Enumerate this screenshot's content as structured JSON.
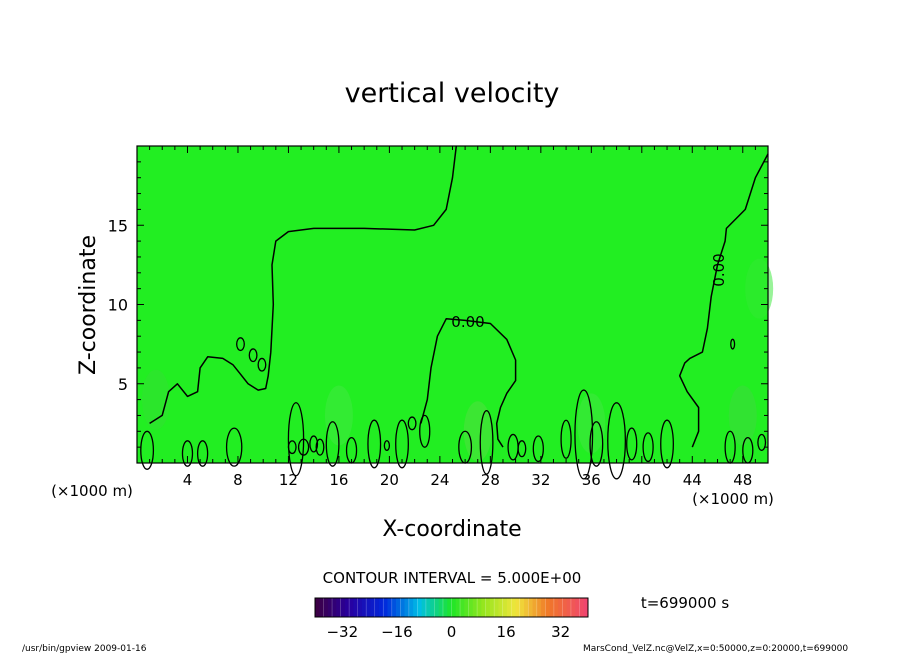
{
  "chart_data": {
    "type": "contour",
    "title": "vertical velocity",
    "xlabel": "X-coordinate",
    "ylabel": "Z-coordinate",
    "x_unit": "(×1000 m)",
    "x_unit_right": "(×1000 m)",
    "xlim": [
      0,
      50
    ],
    "ylim": [
      0,
      20
    ],
    "xticks": [
      4,
      8,
      12,
      16,
      20,
      24,
      28,
      32,
      36,
      40,
      44,
      48
    ],
    "yticks": [
      5,
      10,
      15
    ],
    "contour_labels": [
      "0.00",
      "0.00"
    ],
    "contour_interval_text": "CONTOUR INTERVAL = 5.000E+00",
    "time_text": "t=699000 s",
    "colorbar": {
      "ticks": [
        -32,
        -16,
        0,
        16,
        32
      ],
      "range": [
        -40,
        40
      ]
    },
    "contours_zero": [
      {
        "name": "main-zero-contour",
        "points": [
          [
            1,
            2.5
          ],
          [
            2,
            3
          ],
          [
            2.5,
            4.5
          ],
          [
            3.2,
            5
          ],
          [
            4,
            4.2
          ],
          [
            4.8,
            4.5
          ],
          [
            5,
            6
          ],
          [
            5.6,
            6.7
          ],
          [
            6.8,
            6.6
          ],
          [
            7.6,
            6.2
          ],
          [
            8.2,
            5.6
          ],
          [
            8.8,
            5
          ],
          [
            9.6,
            4.6
          ],
          [
            10.2,
            4.7
          ],
          [
            10.4,
            5.5
          ],
          [
            10.6,
            7
          ],
          [
            10.8,
            10
          ],
          [
            10.7,
            12.5
          ],
          [
            11,
            14
          ],
          [
            12,
            14.6
          ],
          [
            14,
            14.8
          ],
          [
            18,
            14.8
          ],
          [
            22,
            14.7
          ],
          [
            23.5,
            15
          ],
          [
            24.5,
            16
          ],
          [
            25,
            18
          ],
          [
            25.3,
            20
          ]
        ]
      },
      {
        "name": "middle-zero-contour",
        "points": [
          [
            22.5,
            2.5
          ],
          [
            23,
            4
          ],
          [
            23.3,
            6
          ],
          [
            23.8,
            8
          ],
          [
            24.5,
            9.1
          ],
          [
            26,
            9
          ],
          [
            28,
            8.8
          ],
          [
            29.3,
            7.8
          ],
          [
            30,
            6.5
          ],
          [
            30,
            5.2
          ],
          [
            29.3,
            4.4
          ],
          [
            28.8,
            3.5
          ],
          [
            28.5,
            2.5
          ],
          [
            28.6,
            1.5
          ],
          [
            29,
            1
          ]
        ]
      },
      {
        "name": "right-zero-contour",
        "points": [
          [
            50,
            19.5
          ],
          [
            49,
            18
          ],
          [
            48.2,
            16
          ],
          [
            46.7,
            14.8
          ],
          [
            46.6,
            14
          ],
          [
            46,
            12.5
          ],
          [
            45.5,
            10.5
          ],
          [
            45.2,
            8.5
          ],
          [
            44.8,
            7
          ],
          [
            43.8,
            6.6
          ],
          [
            43.4,
            6.3
          ],
          [
            43,
            5.5
          ],
          [
            43.6,
            4.5
          ],
          [
            44.5,
            3.5
          ],
          [
            44.5,
            2
          ],
          [
            44,
            1
          ]
        ]
      }
    ]
  },
  "footer": {
    "left_text": "/usr/bin/gpview   2009-01-16",
    "right_text": "MarsCond_VelZ.nc@VelZ,x=0:50000,z=0:20000,t=699000"
  },
  "colors": {
    "background_field": "#22ee22",
    "contour_line": "#000000"
  }
}
